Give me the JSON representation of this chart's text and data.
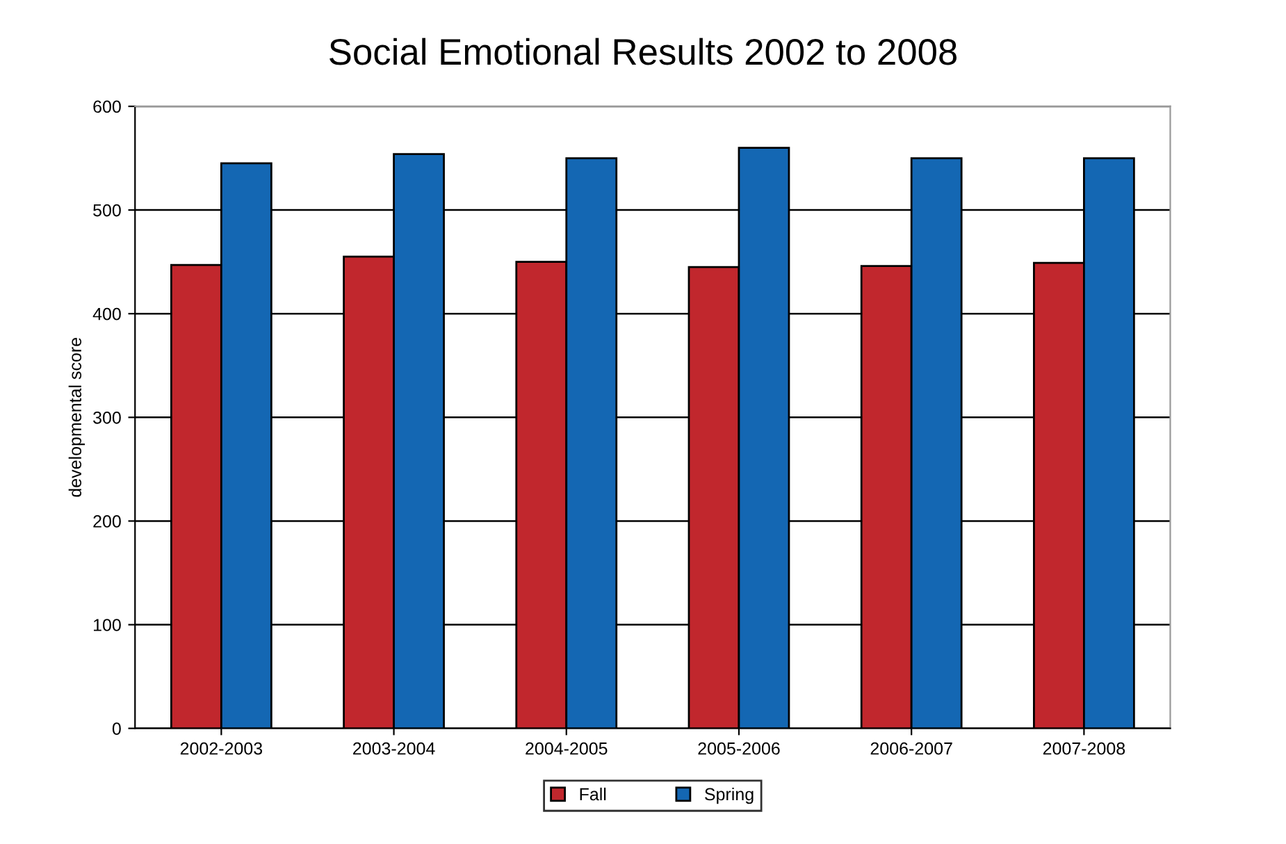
{
  "chart_data": {
    "type": "bar",
    "title": "Social Emotional Results 2002 to 2008",
    "ylabel": "developmental score",
    "categories": [
      "2002-2003",
      "2003-2004",
      "2004-2005",
      "2005-2006",
      "2006-2007",
      "2007-2008"
    ],
    "series": [
      {
        "name": "Fall",
        "color": "#c1272d",
        "values": [
          447,
          455,
          450,
          445,
          446,
          449
        ]
      },
      {
        "name": "Spring",
        "color": "#1467b3",
        "values": [
          545,
          554,
          550,
          560,
          550,
          550
        ]
      }
    ],
    "ylim": [
      0,
      600
    ],
    "yticks": [
      0,
      100,
      200,
      300,
      400,
      500,
      600
    ],
    "grid": "y",
    "legend": "bottom"
  }
}
